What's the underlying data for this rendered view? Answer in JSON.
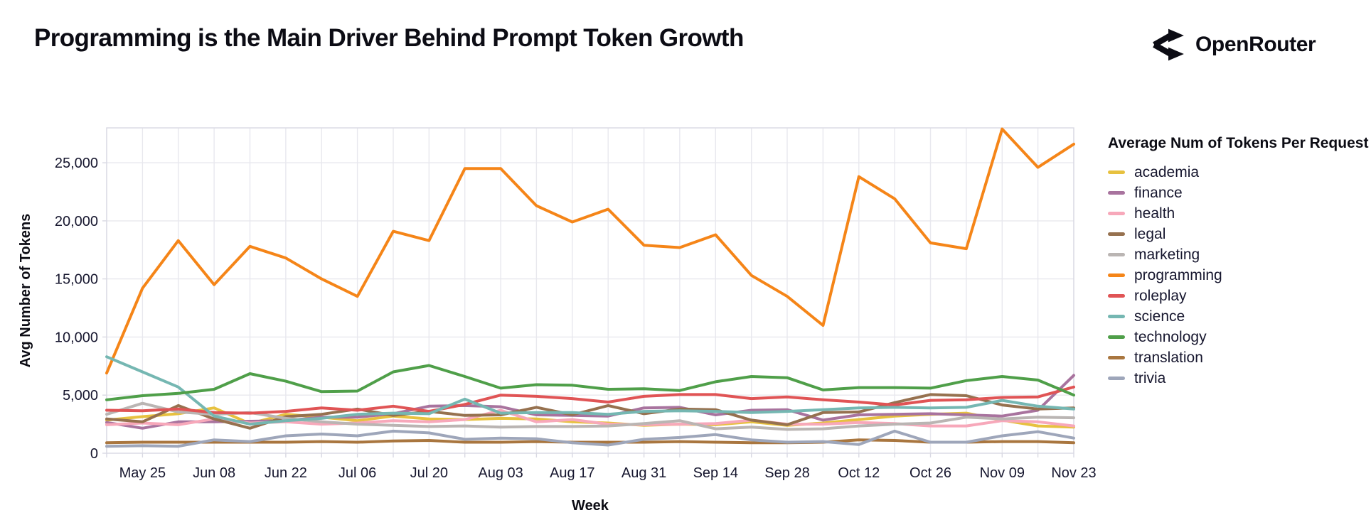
{
  "header": {
    "title": "Programming is the Main Driver Behind Prompt Token Growth",
    "brand": "OpenRouter"
  },
  "chart_data": {
    "type": "line",
    "title": "Programming is the Main Driver Behind Prompt Token Growth",
    "xlabel": "Week",
    "ylabel": "Avg Number of Tokens",
    "legend_title": "Average Num of Tokens Per Request",
    "legend_position": "right",
    "grid": true,
    "ylim": [
      0,
      28000
    ],
    "y_ticks": [
      0,
      5000,
      10000,
      15000,
      20000,
      25000
    ],
    "x": [
      "May 18",
      "May 25",
      "Jun 01",
      "Jun 08",
      "Jun 15",
      "Jun 22",
      "Jun 29",
      "Jul 06",
      "Jul 13",
      "Jul 20",
      "Jul 27",
      "Aug 03",
      "Aug 10",
      "Aug 17",
      "Aug 24",
      "Aug 31",
      "Sep 07",
      "Sep 14",
      "Sep 21",
      "Sep 28",
      "Oct 05",
      "Oct 12",
      "Oct 19",
      "Oct 26",
      "Nov 02",
      "Nov 09",
      "Nov 16",
      "Nov 23"
    ],
    "x_tick_labels": [
      "May 25",
      "Jun 08",
      "Jun 22",
      "Jul 06",
      "Jul 20",
      "Aug 03",
      "Aug 17",
      "Aug 31",
      "Sep 14",
      "Sep 28",
      "Oct 12",
      "Oct 26",
      "Nov 09",
      "Nov 23"
    ],
    "series": [
      {
        "name": "academia",
        "color": "#e7c13f",
        "values": [
          2850,
          3150,
          3400,
          3900,
          2550,
          3350,
          3100,
          2800,
          3200,
          2950,
          2900,
          3000,
          2950,
          2700,
          2600,
          2400,
          2500,
          2450,
          2700,
          2400,
          2600,
          2900,
          3200,
          3350,
          3450,
          2850,
          2350,
          2250
        ]
      },
      {
        "name": "finance",
        "color": "#a8739e",
        "values": [
          2650,
          2150,
          2700,
          2700,
          2750,
          2800,
          3100,
          3100,
          3400,
          4050,
          4100,
          4000,
          3300,
          3250,
          3200,
          3900,
          3950,
          3300,
          3700,
          3750,
          2850,
          3300,
          3350,
          3400,
          3300,
          3200,
          3700,
          6700
        ]
      },
      {
        "name": "health",
        "color": "#f7a8ba",
        "values": [
          2450,
          2600,
          2450,
          2950,
          2600,
          2700,
          2500,
          2600,
          2800,
          2700,
          2900,
          3700,
          2700,
          2900,
          2500,
          2450,
          2500,
          2550,
          2850,
          2500,
          2500,
          2650,
          2550,
          2350,
          2350,
          2800,
          2700,
          2350
        ]
      },
      {
        "name": "legal",
        "color": "#96714f",
        "values": [
          2950,
          2700,
          4100,
          2950,
          2150,
          3150,
          3350,
          3800,
          3250,
          3600,
          3250,
          3300,
          3950,
          3300,
          4100,
          3400,
          3800,
          3750,
          2850,
          2450,
          3500,
          3550,
          4350,
          5050,
          4950,
          4150,
          3800,
          3900
        ]
      },
      {
        "name": "marketing",
        "color": "#bab5b3",
        "values": [
          3350,
          4300,
          3550,
          3350,
          3500,
          3000,
          2700,
          2500,
          2400,
          2300,
          2350,
          2250,
          2300,
          2300,
          2350,
          2550,
          2800,
          2100,
          2250,
          2050,
          2100,
          2350,
          2500,
          2600,
          3100,
          2950,
          3100,
          3050
        ]
      },
      {
        "name": "programming",
        "color": "#f58518",
        "values": [
          6900,
          14200,
          18300,
          14500,
          17800,
          16800,
          15000,
          13500,
          19100,
          18300,
          24500,
          24500,
          21300,
          19900,
          21000,
          17900,
          17700,
          18800,
          15300,
          13500,
          11000,
          23800,
          21900,
          18100,
          17600,
          27900,
          24600,
          26600
        ]
      },
      {
        "name": "roleplay",
        "color": "#e05455",
        "values": [
          3700,
          3650,
          3800,
          3500,
          3450,
          3600,
          3900,
          3700,
          4050,
          3600,
          4200,
          5000,
          4900,
          4700,
          4400,
          4900,
          5050,
          5050,
          4700,
          4850,
          4600,
          4400,
          4150,
          4550,
          4600,
          4800,
          4850,
          5700
        ]
      },
      {
        "name": "science",
        "color": "#75b7b2",
        "values": [
          8300,
          7000,
          5700,
          3200,
          2500,
          2800,
          3000,
          3350,
          3450,
          3400,
          4650,
          3450,
          3500,
          3500,
          3350,
          3600,
          3650,
          3600,
          3500,
          3600,
          3750,
          3900,
          3950,
          3900,
          3950,
          4550,
          4050,
          3800
        ]
      },
      {
        "name": "technology",
        "color": "#4f9f49",
        "values": [
          4600,
          4950,
          5150,
          5500,
          6850,
          6200,
          5300,
          5350,
          7000,
          7550,
          6600,
          5600,
          5900,
          5850,
          5500,
          5550,
          5400,
          6150,
          6600,
          6500,
          5450,
          5650,
          5650,
          5600,
          6250,
          6600,
          6300,
          5000
        ]
      },
      {
        "name": "translation",
        "color": "#a9763f",
        "values": [
          900,
          950,
          950,
          950,
          950,
          950,
          1000,
          950,
          1050,
          1100,
          950,
          950,
          1000,
          950,
          950,
          950,
          1000,
          950,
          900,
          900,
          950,
          1150,
          1100,
          950,
          950,
          1000,
          1000,
          900
        ]
      },
      {
        "name": "trivia",
        "color": "#9ea6ba",
        "values": [
          600,
          650,
          600,
          1150,
          1000,
          1500,
          1650,
          1500,
          1900,
          1750,
          1200,
          1300,
          1250,
          900,
          700,
          1200,
          1350,
          1600,
          1150,
          950,
          1000,
          750,
          1900,
          950,
          950,
          1500,
          1850,
          1300
        ]
      }
    ]
  },
  "style": {
    "grid_color": "#e8e8ee",
    "border_color": "#d9d9e3",
    "tick_text_color": "#16162e",
    "accent": "#f58518"
  }
}
